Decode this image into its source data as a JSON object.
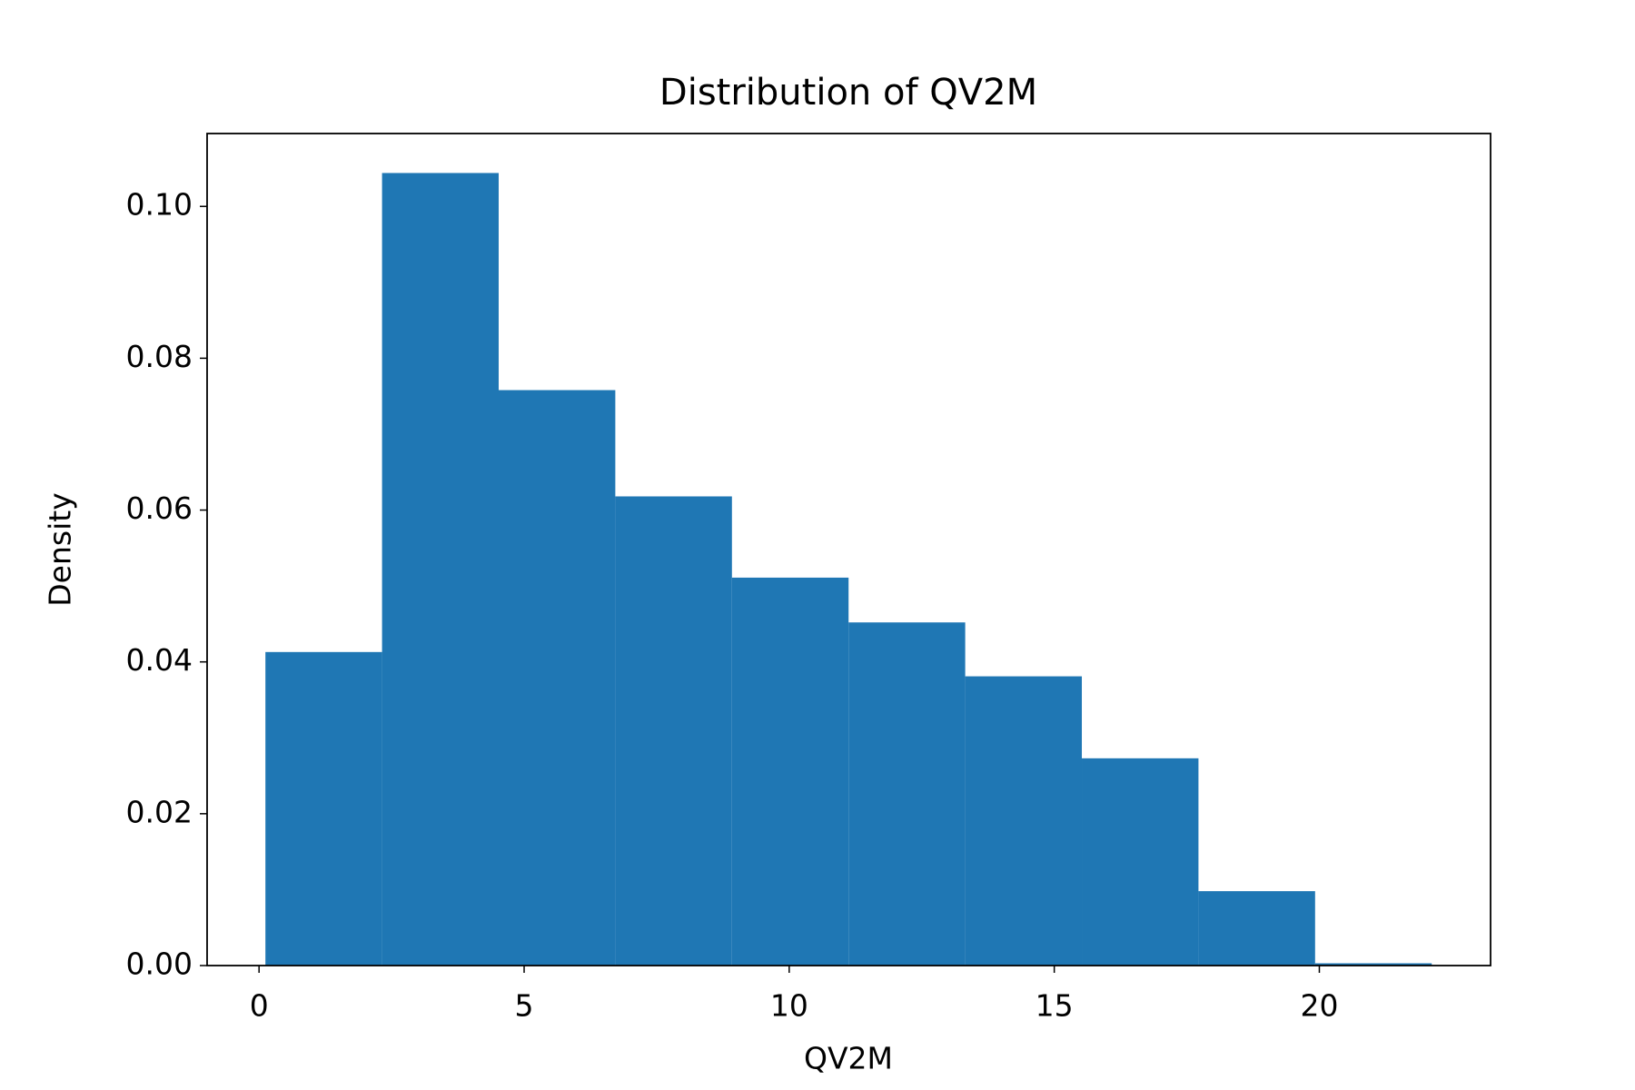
{
  "chart_data": {
    "type": "histogram",
    "title": "Distribution of QV2M",
    "x_label": "QV2M",
    "y_label": "Density",
    "bins": [
      0.12,
      2.32,
      4.52,
      6.72,
      8.92,
      11.12,
      13.32,
      15.52,
      17.72,
      19.92,
      22.12
    ],
    "values": [
      0.0413,
      0.1044,
      0.0758,
      0.0618,
      0.0511,
      0.0452,
      0.0381,
      0.0273,
      0.0098,
      0.0003
    ],
    "color": "#1f77b4",
    "xlim": [
      -0.98,
      23.23
    ],
    "xticks": [
      0,
      5,
      10,
      15,
      20
    ],
    "ylim": [
      0,
      0.1096
    ],
    "yticks": [
      {
        "value": 0,
        "label": "0.00"
      },
      {
        "value": 0.02,
        "label": "0.02"
      },
      {
        "value": 0.04,
        "label": "0.04"
      },
      {
        "value": 0.06,
        "label": "0.06"
      },
      {
        "value": 0.08,
        "label": "0.08"
      },
      {
        "value": 0.1,
        "label": "0.10"
      }
    ]
  }
}
